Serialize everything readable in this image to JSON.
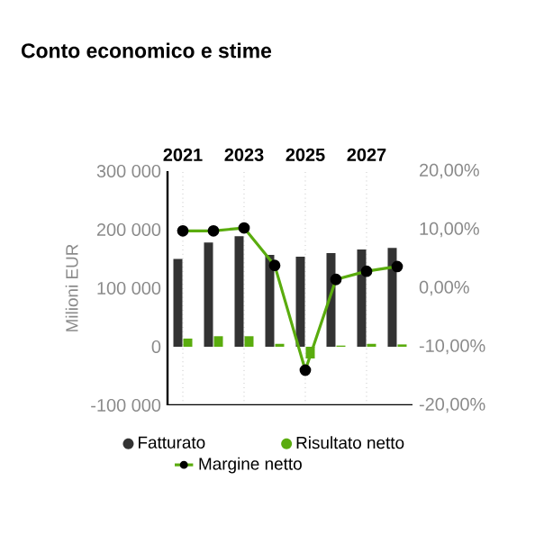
{
  "chart_data": {
    "type": "bar",
    "title": "Conto economico e stime",
    "ylabel": "Milioni EUR",
    "categories": [
      "2021",
      null,
      "2023",
      null,
      "2025",
      null,
      "2027",
      null
    ],
    "ylim": [
      -100000,
      300000
    ],
    "yticks": [
      {
        "value": -100000,
        "label": "-100 000"
      },
      {
        "value": 0,
        "label": "0"
      },
      {
        "value": 100000,
        "label": "100 000"
      },
      {
        "value": 200000,
        "label": "200 000"
      },
      {
        "value": 300000,
        "label": "300 000"
      }
    ],
    "y2lim": [
      -20,
      20
    ],
    "y2ticks": [
      {
        "value": -20,
        "label": "-20,00%"
      },
      {
        "value": -10,
        "label": "-10,00%"
      },
      {
        "value": 0,
        "label": "0,00%"
      },
      {
        "value": 10,
        "label": "10,00%"
      },
      {
        "value": 20,
        "label": "20,00%"
      }
    ],
    "grid": "x",
    "legend": "bottom",
    "series": [
      {
        "name": "Fatturato",
        "color": "#333333",
        "values": [
          150000,
          178000,
          189000,
          157000,
          154000,
          160000,
          166000,
          169000
        ]
      },
      {
        "name": "Risultato netto",
        "color": "#5aac0e",
        "values": [
          14000,
          18000,
          18000,
          5000,
          -20000,
          2000,
          5000,
          4000
        ]
      },
      {
        "name": "Margine netto",
        "type": "line",
        "axis": "y2",
        "marker": "circle",
        "color": "#5aac0e",
        "values": [
          9.8,
          9.8,
          10.3,
          3.9,
          -14.0,
          1.5,
          2.9,
          3.7
        ]
      }
    ]
  }
}
